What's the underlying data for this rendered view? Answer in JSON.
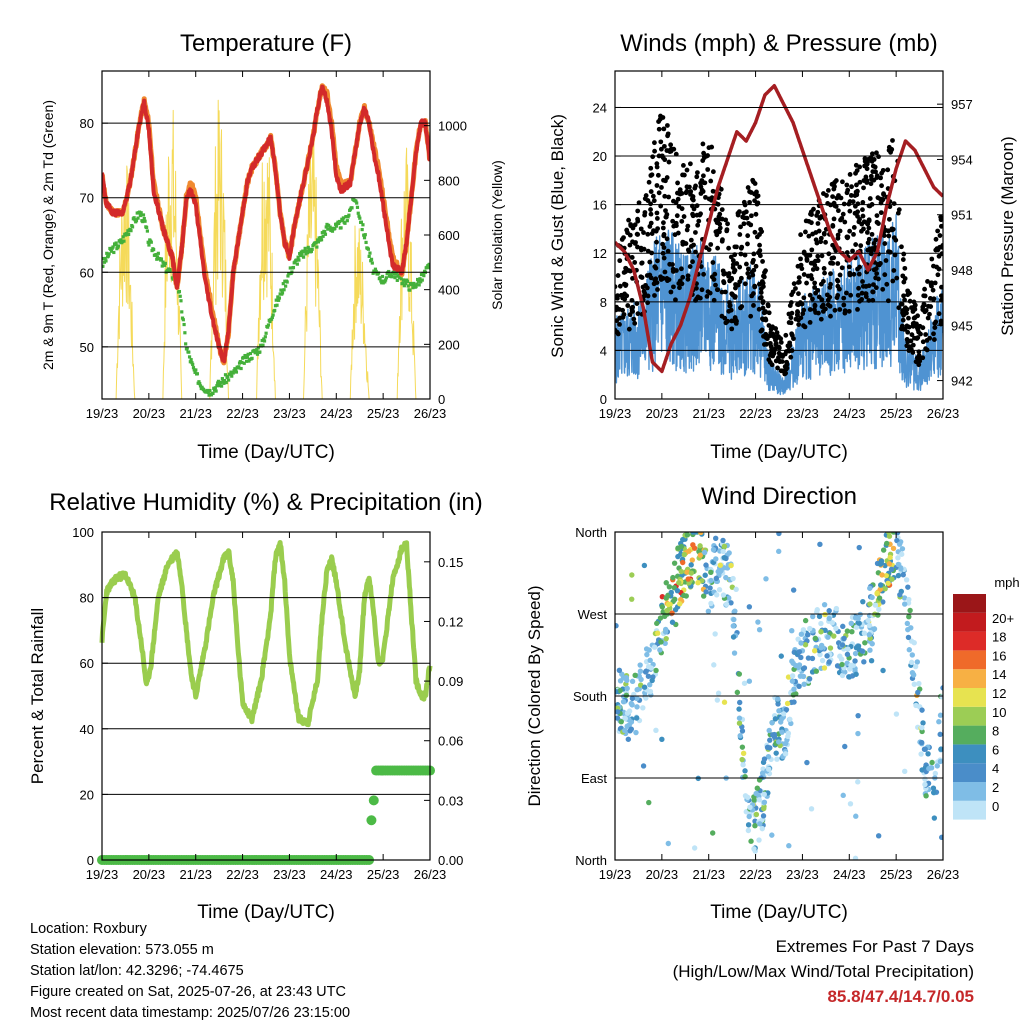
{
  "chart_data": [
    {
      "type": "line",
      "title": "Temperature (F)",
      "xlabel": "Time (Day/UTC)",
      "ylabel": "2m & 9m T (Red, Orange) & 2m Td (Green)",
      "ylabel_right": "Solar Insolation (Yellow)",
      "x_ticks": [
        "19/23",
        "20/23",
        "21/23",
        "22/23",
        "23/23",
        "24/23",
        "25/23",
        "26/23"
      ],
      "xlim": [
        0,
        7
      ],
      "ylim": [
        43,
        87
      ],
      "y_ticks": [
        50,
        60,
        70,
        80
      ],
      "ylim_right": [
        0,
        1200
      ],
      "y_ticks_right": [
        0,
        200,
        400,
        600,
        800,
        1000
      ],
      "grid": true,
      "colors": {
        "t2m": "#d32a2a",
        "t9m": "#f08a30",
        "td": "#44b03a",
        "solar": "#f5da5a"
      },
      "series": [
        {
          "key": "t9m",
          "x": [
            0,
            0.1,
            0.25,
            0.45,
            0.6,
            0.8,
            0.9,
            1.0,
            1.1,
            1.3,
            1.5,
            1.6,
            1.7,
            1.8,
            1.9,
            2.0,
            2.1,
            2.2,
            2.35,
            2.5,
            2.6,
            2.7,
            2.8,
            3.0,
            3.1,
            3.2,
            3.4,
            3.6,
            3.7,
            3.8,
            3.9,
            4.0,
            4.1,
            4.3,
            4.5,
            4.6,
            4.7,
            4.8,
            4.9,
            5.0,
            5.1,
            5.3,
            5.5,
            5.6,
            5.7,
            5.8,
            5.9,
            6.0,
            6.2,
            6.4,
            6.5,
            6.6,
            6.7,
            6.8,
            6.9,
            7.0
          ],
          "y": [
            73,
            69,
            68,
            68,
            72,
            80,
            83,
            80,
            72,
            66,
            62,
            58,
            63,
            70,
            72,
            70,
            65,
            60,
            55,
            50,
            48,
            52,
            60,
            68,
            72,
            74,
            76,
            78,
            74,
            68,
            64,
            62,
            66,
            72,
            78,
            82,
            85,
            84,
            80,
            74,
            72,
            72,
            80,
            82,
            80,
            77,
            74,
            70,
            62,
            60,
            64,
            70,
            76,
            80,
            80,
            75
          ]
        },
        {
          "key": "t2m",
          "x": [
            0,
            0.1,
            0.25,
            0.45,
            0.6,
            0.8,
            0.9,
            1.0,
            1.1,
            1.3,
            1.5,
            1.6,
            1.7,
            1.8,
            1.9,
            2.0,
            2.1,
            2.2,
            2.35,
            2.5,
            2.6,
            2.7,
            2.8,
            3.0,
            3.1,
            3.2,
            3.4,
            3.6,
            3.7,
            3.8,
            3.9,
            4.0,
            4.1,
            4.3,
            4.5,
            4.6,
            4.7,
            4.8,
            4.9,
            5.0,
            5.1,
            5.3,
            5.5,
            5.6,
            5.7,
            5.8,
            5.9,
            6.0,
            6.2,
            6.4,
            6.5,
            6.6,
            6.7,
            6.8,
            6.9,
            7.0
          ],
          "y": [
            73,
            69,
            68,
            68,
            72,
            80,
            83,
            79,
            71,
            66,
            62,
            58,
            63,
            70,
            71,
            69,
            64,
            59,
            54,
            50,
            48,
            52,
            60,
            68,
            72,
            74,
            76,
            78,
            74,
            68,
            64,
            62,
            66,
            72,
            78,
            82,
            85,
            83,
            79,
            73,
            71,
            72,
            80,
            82,
            80,
            76,
            73,
            69,
            61,
            60,
            64,
            70,
            76,
            80,
            80,
            75
          ]
        },
        {
          "key": "td",
          "x": [
            0,
            0.2,
            0.4,
            0.6,
            0.8,
            0.9,
            1.0,
            1.2,
            1.3,
            1.45,
            1.6,
            1.7,
            1.8,
            1.95,
            2.1,
            2.3,
            2.5,
            2.7,
            2.9,
            3.0,
            3.2,
            3.4,
            3.6,
            3.8,
            4.0,
            4.2,
            4.4,
            4.6,
            4.8,
            5.0,
            5.2,
            5.4,
            5.6,
            5.8,
            6.0,
            6.2,
            6.4,
            6.6,
            6.8,
            7.0
          ],
          "y": [
            61,
            63,
            64,
            66,
            68,
            67,
            64,
            62,
            61,
            60,
            59,
            55,
            50,
            47,
            45,
            44,
            45,
            46,
            47,
            48,
            49,
            50,
            54,
            57,
            60,
            62,
            63,
            64,
            66,
            66,
            67,
            70,
            65,
            60,
            59,
            60,
            59,
            58,
            59,
            61
          ]
        },
        {
          "key": "solar",
          "x": [
            0,
            0.3,
            0.35,
            0.42,
            0.5,
            0.58,
            0.65,
            0.7,
            1.3,
            1.35,
            1.42,
            1.5,
            1.58,
            1.65,
            1.7,
            2.3,
            2.35,
            2.42,
            2.5,
            2.58,
            2.65,
            2.7,
            3.3,
            3.35,
            3.42,
            3.5,
            3.58,
            3.65,
            3.7,
            4.3,
            4.35,
            4.42,
            4.5,
            4.58,
            4.65,
            4.7,
            5.3,
            5.35,
            5.42,
            5.5,
            5.58,
            5.65,
            5.7,
            6.3,
            6.35,
            6.42,
            6.5,
            6.58,
            6.65,
            6.7,
            7.0
          ],
          "y": [
            0,
            0,
            450,
            800,
            1000,
            700,
            300,
            0,
            0,
            600,
            1050,
            1150,
            900,
            400,
            0,
            0,
            500,
            950,
            1150,
            1000,
            500,
            0,
            0,
            550,
            1000,
            1100,
            900,
            450,
            0,
            0,
            450,
            900,
            1000,
            800,
            350,
            0,
            0,
            400,
            750,
            650,
            500,
            200,
            0,
            0,
            500,
            900,
            950,
            700,
            300,
            0,
            0
          ]
        }
      ]
    },
    {
      "type": "scatter",
      "title": "Winds (mph) & Pressure (mb)",
      "xlabel": "Time (Day/UTC)",
      "ylabel": "Sonic Wind & Gust (Blue, Black)",
      "ylabel_right": "Station Pressure (Maroon)",
      "x_ticks": [
        "19/23",
        "20/23",
        "21/23",
        "22/23",
        "23/23",
        "24/23",
        "25/23",
        "26/23"
      ],
      "xlim": [
        0,
        7
      ],
      "ylim": [
        0,
        27
      ],
      "y_ticks": [
        0,
        4,
        8,
        12,
        16,
        20,
        24
      ],
      "ylim_right": [
        941,
        958.8
      ],
      "y_ticks_right": [
        942,
        945,
        948,
        951,
        954,
        957
      ],
      "grid": true,
      "colors": {
        "wind": "#4f93d2",
        "gust": "#000000",
        "pressure": "#a51e22"
      },
      "series": [
        {
          "key": "pressure",
          "x": [
            0,
            0.2,
            0.4,
            0.6,
            0.8,
            1.0,
            1.2,
            1.4,
            1.6,
            1.8,
            2.0,
            2.2,
            2.4,
            2.6,
            2.8,
            3.0,
            3.2,
            3.4,
            3.6,
            3.8,
            4.0,
            4.2,
            4.4,
            4.6,
            4.8,
            5.0,
            5.2,
            5.4,
            5.6,
            5.8,
            6.0,
            6.2,
            6.4,
            6.6,
            6.8,
            7.0
          ],
          "y": [
            949.5,
            949.0,
            948.0,
            946.0,
            943.0,
            942.5,
            944.0,
            945.0,
            946.5,
            948.5,
            950.5,
            952.5,
            954.0,
            955.5,
            955.0,
            956.0,
            957.5,
            958.0,
            957.0,
            956.0,
            954.5,
            953.0,
            951.5,
            950.0,
            949.0,
            948.5,
            949.0,
            948.0,
            949.0,
            951.5,
            953.5,
            955.0,
            954.5,
            953.5,
            952.5,
            952.0
          ]
        },
        {
          "key": "wind_mean",
          "x": [
            0,
            0.5,
            1.0,
            1.5,
            2.0,
            2.5,
            3.0,
            3.3,
            3.6,
            4.0,
            4.5,
            5.0,
            5.5,
            6.0,
            6.2,
            6.5,
            7.0
          ],
          "y": [
            4,
            5,
            9,
            7,
            8,
            5,
            7,
            2,
            1,
            5,
            6,
            7,
            8,
            9,
            3,
            2,
            6
          ]
        },
        {
          "key": "gust_mean",
          "x": [
            0,
            0.5,
            1.0,
            1.5,
            2.0,
            2.5,
            3.0,
            3.3,
            3.6,
            4.0,
            4.5,
            5.0,
            5.5,
            6.0,
            6.2,
            6.5,
            7.0
          ],
          "y": [
            9,
            11,
            17,
            13,
            15,
            10,
            13,
            5,
            3,
            10,
            12,
            13,
            14,
            15,
            7,
            5,
            11
          ]
        }
      ]
    },
    {
      "type": "line",
      "title": "Relative Humidity (%) & Precipitation (in)",
      "xlabel": "Time (Day/UTC)",
      "ylabel": "Percent & Total Rainfall",
      "x_ticks": [
        "19/23",
        "20/23",
        "21/23",
        "22/23",
        "23/23",
        "24/23",
        "25/23",
        "26/23"
      ],
      "xlim": [
        0,
        7
      ],
      "ylim": [
        0,
        100
      ],
      "y_ticks": [
        0,
        20,
        40,
        60,
        80,
        100
      ],
      "ylim_right": [
        0,
        0.165
      ],
      "y_ticks_right": [
        "0.00",
        "0.03",
        "0.06",
        "0.09",
        "0.12",
        "0.15"
      ],
      "grid": true,
      "colors": {
        "rh": "#9acd4e",
        "precip": "#4cba46"
      },
      "series": [
        {
          "key": "rh",
          "x": [
            0,
            0.1,
            0.3,
            0.5,
            0.7,
            0.85,
            0.95,
            1.05,
            1.2,
            1.4,
            1.6,
            1.7,
            1.8,
            1.9,
            2.0,
            2.2,
            2.4,
            2.6,
            2.7,
            2.8,
            2.9,
            3.0,
            3.2,
            3.4,
            3.6,
            3.7,
            3.8,
            3.9,
            4.0,
            4.2,
            4.4,
            4.6,
            4.7,
            4.8,
            4.9,
            5.0,
            5.2,
            5.4,
            5.5,
            5.6,
            5.7,
            5.8,
            5.9,
            6.0,
            6.2,
            6.4,
            6.5,
            6.6,
            6.7,
            6.8,
            6.9,
            7.0
          ],
          "y": [
            67,
            82,
            86,
            87,
            80,
            65,
            53,
            60,
            80,
            90,
            94,
            85,
            70,
            57,
            50,
            65,
            82,
            92,
            94,
            85,
            65,
            48,
            43,
            55,
            75,
            92,
            97,
            85,
            62,
            43,
            42,
            55,
            75,
            88,
            92,
            85,
            65,
            50,
            58,
            80,
            86,
            75,
            60,
            62,
            85,
            95,
            96,
            75,
            55,
            50,
            50,
            60
          ]
        },
        {
          "key": "precip",
          "x": [
            0,
            5.7,
            5.75,
            5.8,
            5.85,
            5.9,
            6.0,
            7.0
          ],
          "y": [
            0,
            0,
            0.02,
            0.03,
            0.045,
            0.045,
            0.045,
            0.045
          ]
        }
      ]
    },
    {
      "type": "scatter",
      "title": "Wind Direction",
      "xlabel": "Time (Day/UTC)",
      "ylabel": "Direction (Colored By Speed)",
      "x_ticks": [
        "19/23",
        "20/23",
        "21/23",
        "22/23",
        "23/23",
        "24/23",
        "25/23",
        "26/23"
      ],
      "xlim": [
        0,
        7
      ],
      "ylim": [
        0,
        360
      ],
      "y_ticks": [
        "North",
        "East",
        "South",
        "West",
        "North"
      ],
      "grid": true,
      "legend_title": "mph",
      "legend_labels": [
        "0",
        "2",
        "4",
        "6",
        "8",
        "10",
        "12",
        "14",
        "16",
        "18",
        "20+"
      ],
      "legend_colors": [
        "#bfe4f7",
        "#7fbde6",
        "#4a8dc9",
        "#3d8fbf",
        "#55ad5e",
        "#9ccd55",
        "#e7e350",
        "#f7b044",
        "#ef6a2a",
        "#dd2b28",
        "#c21b1e",
        "#9b1618"
      ],
      "series": [
        {
          "key": "dir_trend",
          "x": [
            0,
            0.3,
            0.6,
            0.8,
            1.0,
            1.2,
            1.4,
            1.6,
            1.8,
            2.0,
            2.2,
            2.5,
            2.8,
            3.0,
            3.2,
            3.4,
            3.6,
            3.8,
            4.0,
            4.3,
            4.6,
            4.9,
            5.2,
            5.5,
            5.8,
            6.0,
            6.2,
            6.4,
            6.6,
            6.8,
            7.0
          ],
          "y": [
            180,
            165,
            185,
            220,
            260,
            290,
            315,
            330,
            340,
            300,
            330,
            300,
            60,
            40,
            80,
            150,
            130,
            200,
            220,
            240,
            250,
            230,
            240,
            270,
            330,
            340,
            300,
            210,
            110,
            70,
            170
          ]
        }
      ]
    }
  ],
  "info": {
    "location": "Location: Roxbury",
    "elevation": "Station elevation: 573.055 m",
    "latlon": "Station lat/lon: 42.3296; -74.4675",
    "created": "Figure created on Sat, 2025-07-26, at 23:43 UTC",
    "recent": "Most recent data timestamp: 2025/07/26 23:15:00"
  },
  "extremes": {
    "line1": "Extremes For Past 7 Days",
    "line2": "(High/Low/Max Wind/Total Precipitation)",
    "values": "85.8/47.4/14.7/0.05"
  }
}
